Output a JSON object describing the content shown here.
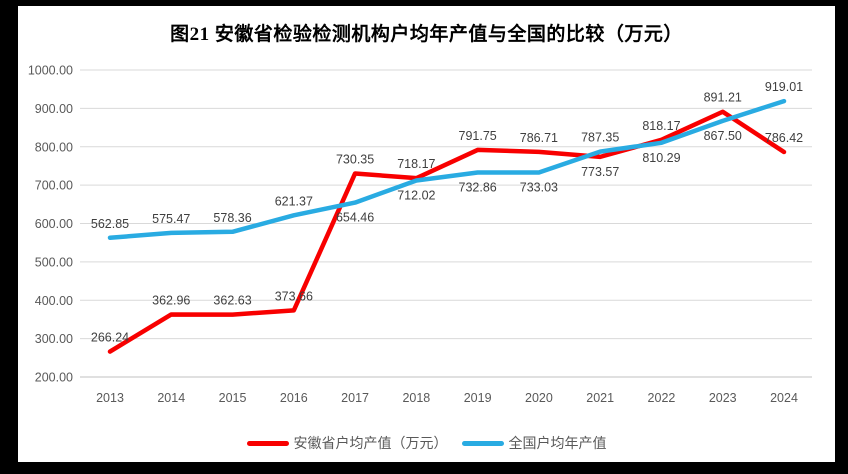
{
  "title": "图21 安徽省检验检测机构户均年产值与全国的比较（万元）",
  "chart_data": {
    "type": "line",
    "title": "图21 安徽省检验检测机构户均年产值与全国的比较（万元）",
    "x": [
      "2013",
      "2014",
      "2015",
      "2016",
      "2017",
      "2018",
      "2019",
      "2020",
      "2021",
      "2022",
      "2023",
      "2024"
    ],
    "series": [
      {
        "name": "安徽省户均产值（万元）",
        "color": "#F80000",
        "values": [
          266.24,
          362.96,
          362.63,
          373.66,
          730.35,
          718.17,
          791.75,
          786.71,
          773.57,
          818.17,
          891.21,
          786.42
        ],
        "label_positions": [
          "above",
          "above",
          "above",
          "above",
          "above",
          "above",
          "above",
          "above",
          "below",
          "above",
          "above",
          "above"
        ]
      },
      {
        "name": "全国户均年产值",
        "color": "#29ABE2",
        "values": [
          562.85,
          575.47,
          578.36,
          621.37,
          654.46,
          712.02,
          732.86,
          733.03,
          787.35,
          810.29,
          867.5,
          919.01
        ],
        "label_positions": [
          "above",
          "above",
          "above",
          "above",
          "below",
          "below",
          "below",
          "below",
          "above",
          "below",
          "below",
          "above"
        ]
      }
    ],
    "ylim": [
      200,
      1000
    ],
    "y_ticks": [
      "1000.00",
      "900.00",
      "800.00",
      "700.00",
      "600.00",
      "500.00",
      "400.00",
      "300.00",
      "200.00"
    ],
    "grid": true,
    "data_labels": true,
    "data_label_format": "2dp",
    "legend_position": "bottom",
    "colors": {
      "grid": "#D9D9D9",
      "baseline": "#C0C0C0",
      "axis_text": "#595959",
      "data_label_text": "#3F3F3F",
      "page_background": "#FFFFFF",
      "frame_background": "#000000"
    }
  }
}
